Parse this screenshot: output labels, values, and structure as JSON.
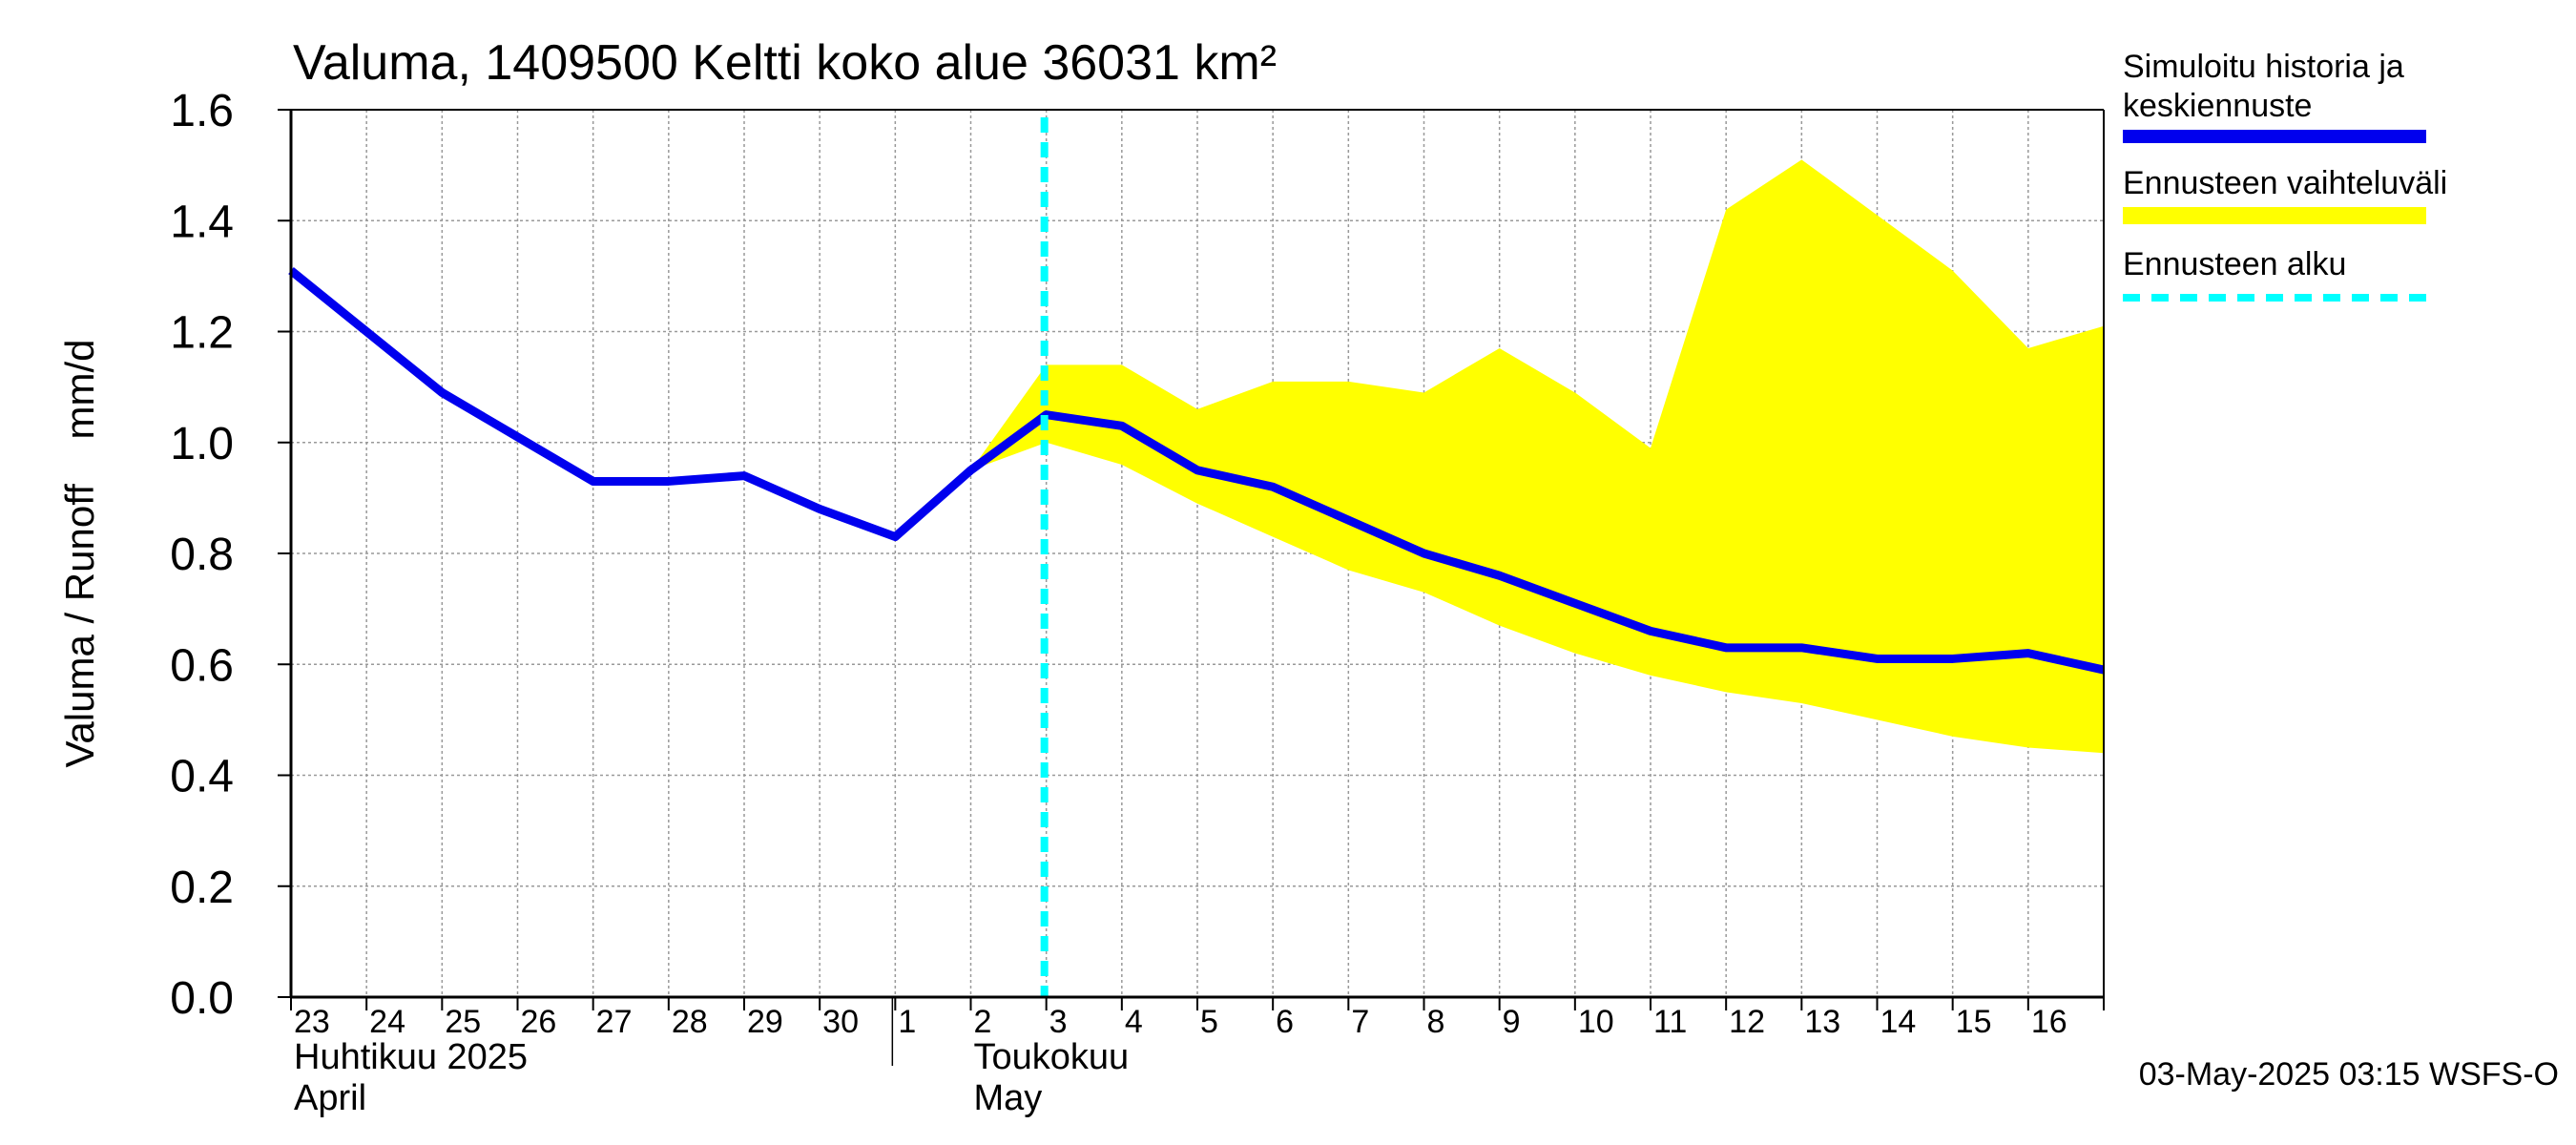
{
  "chart_data": {
    "type": "line",
    "title": "Valuma, 1409500 Keltti koko alue 36031 km²",
    "ylabel": "Valuma / Runoff    mm/d",
    "ylim": [
      0.0,
      1.6
    ],
    "y_ticks": [
      "0.0",
      "0.2",
      "0.4",
      "0.6",
      "0.8",
      "1.0",
      "1.2",
      "1.4",
      "1.6"
    ],
    "grid": true,
    "x_tick_labels": [
      "23",
      "24",
      "25",
      "26",
      "27",
      "28",
      "29",
      "30",
      "1",
      "2",
      "3",
      "4",
      "5",
      "6",
      "7",
      "8",
      "9",
      "10",
      "11",
      "12",
      "13",
      "14",
      "15",
      "16"
    ],
    "month_labels": [
      {
        "line1": "Huhtikuu  2025",
        "line2": "April"
      },
      {
        "line1": "Toukokuu",
        "line2": "May"
      }
    ],
    "forecast_start_day": 10,
    "series": [
      {
        "name": "Simuloitu historia ja keskiennuste",
        "color": "#0000ee",
        "x": [
          0,
          1,
          2,
          3,
          4,
          5,
          6,
          7,
          8,
          9,
          10,
          11,
          12,
          13,
          14,
          15,
          16,
          17,
          18,
          19,
          20,
          21,
          22,
          23,
          24
        ],
        "values": [
          1.31,
          1.2,
          1.09,
          1.01,
          0.93,
          0.93,
          0.94,
          0.88,
          0.83,
          0.95,
          1.05,
          1.03,
          0.95,
          0.92,
          0.86,
          0.8,
          0.76,
          0.71,
          0.66,
          0.63,
          0.63,
          0.61,
          0.61,
          0.62,
          0.59
        ]
      }
    ],
    "band": {
      "name": "Ennusteen vaihteluväli",
      "color": "#ffff00",
      "x": [
        9,
        10,
        11,
        12,
        13,
        14,
        15,
        16,
        17,
        18,
        19,
        20,
        21,
        22,
        23,
        24
      ],
      "upper": [
        0.95,
        1.14,
        1.14,
        1.06,
        1.11,
        1.11,
        1.09,
        1.17,
        1.09,
        0.99,
        1.42,
        1.51,
        1.41,
        1.31,
        1.17,
        1.21
      ],
      "lower": [
        0.95,
        1.0,
        0.96,
        0.89,
        0.83,
        0.77,
        0.73,
        0.67,
        0.62,
        0.58,
        0.55,
        0.53,
        0.5,
        0.47,
        0.45,
        0.44
      ]
    },
    "forecast_start_label": "Ennusteen alku",
    "forecast_start_color": "#00ffff",
    "legend_position": "right"
  },
  "legend": {
    "series_label": "Simuloitu historia ja keskiennuste",
    "band_label": "Ennusteen vaihteluväli",
    "forecast_label": "Ennusteen alku"
  },
  "footer": "03-May-2025 03:15 WSFS-O"
}
